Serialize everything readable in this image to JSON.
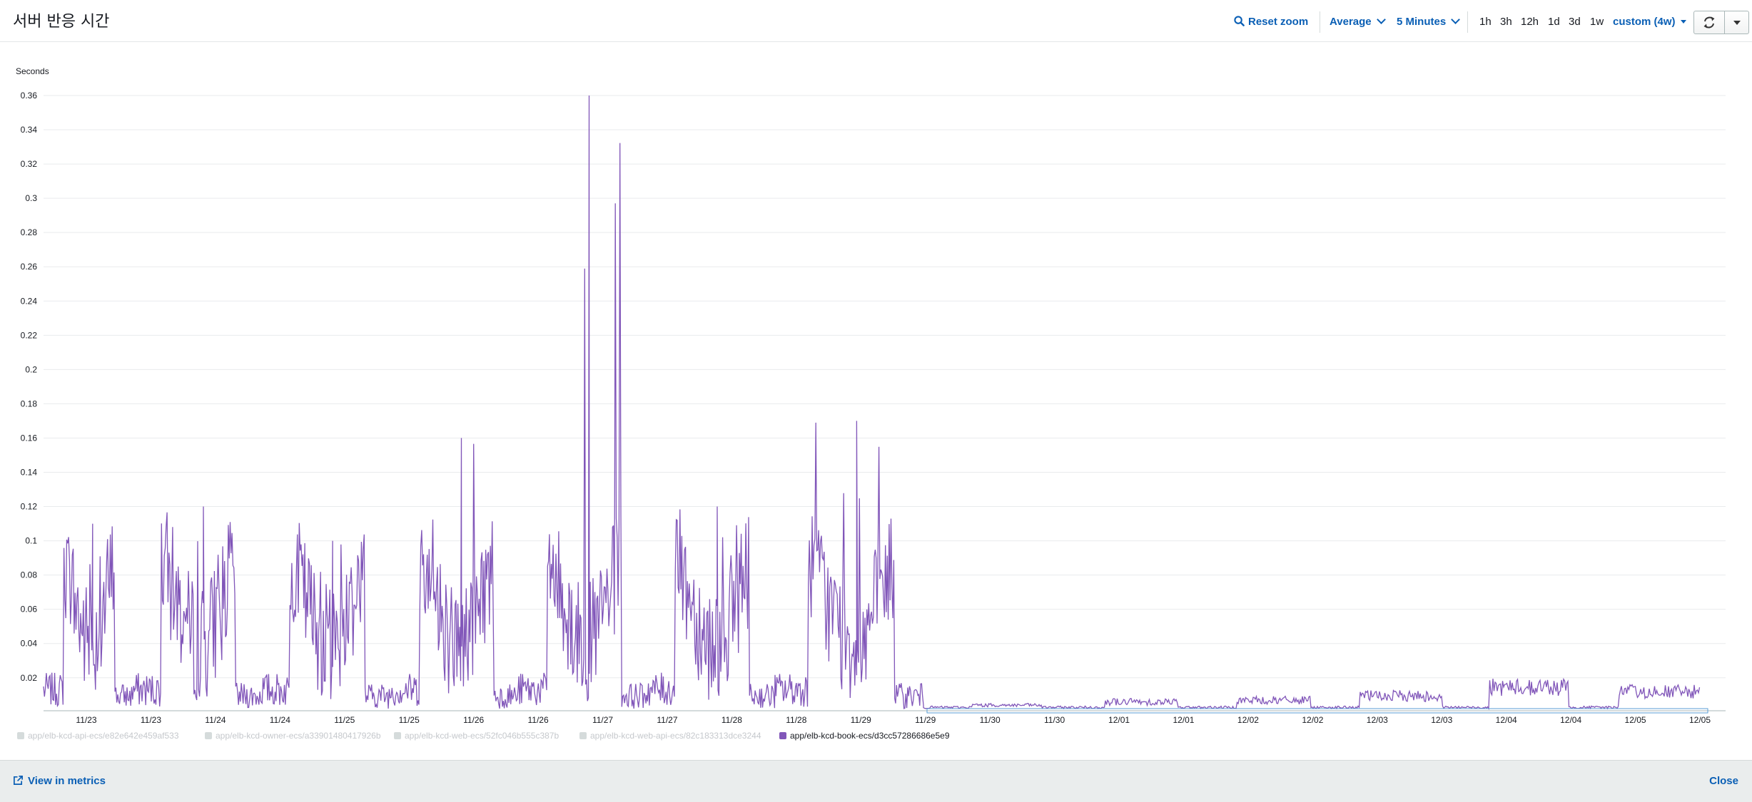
{
  "header": {
    "title": "서버 반응 시간",
    "reset_zoom": "Reset zoom",
    "statistic": "Average",
    "period": "5 Minutes",
    "time_ranges": [
      "1h",
      "3h",
      "12h",
      "1d",
      "3d",
      "1w"
    ],
    "custom_range": "custom (4w)"
  },
  "footer": {
    "view_in_metrics": "View in metrics",
    "close": "Close"
  },
  "colors": {
    "accent_link": "#0a5fb5",
    "series": "#8156b9",
    "grid": "#e9ebed"
  },
  "chart_data": {
    "type": "line",
    "ylabel": "Seconds",
    "ylim": [
      0,
      0.36
    ],
    "y_ticks": [
      "0.36",
      "0.34",
      "0.32",
      "0.3",
      "0.28",
      "0.26",
      "0.24",
      "0.22",
      "0.2",
      "0.18",
      "0.16",
      "0.14",
      "0.12",
      "0.1",
      "0.08",
      "0.06",
      "0.04",
      "0.02"
    ],
    "x_ticks": [
      "11/23",
      "11/23",
      "11/24",
      "11/24",
      "11/25",
      "11/25",
      "11/26",
      "11/26",
      "11/27",
      "11/27",
      "11/28",
      "11/28",
      "11/29",
      "11/29",
      "11/30",
      "11/30",
      "12/01",
      "12/01",
      "12/02",
      "12/02",
      "12/03",
      "12/03",
      "12/04",
      "12/04",
      "12/05",
      "12/05"
    ],
    "grid": true,
    "legend_position": "bottom-left",
    "legend": [
      {
        "label": "app/elb-kcd-api-ecs/e82e642e459af533",
        "active": false
      },
      {
        "label": "app/elb-kcd-owner-ecs/a33901480417926b",
        "active": false
      },
      {
        "label": "app/elb-kcd-web-ecs/52fc046b555c387b",
        "active": false
      },
      {
        "label": "app/elb-kcd-web-api-ecs/82c183313dce3244",
        "active": false
      },
      {
        "label": "app/elb-kcd-book-ecs/d3cc57286686e5e9",
        "active": true
      }
    ],
    "series": [
      {
        "name": "app/elb-kcd-book-ecs/d3cc57286686e5e9",
        "x": [
          "11/23",
          "11/23",
          "11/24",
          "11/24",
          "11/25",
          "11/25",
          "11/26",
          "11/26",
          "11/27",
          "11/27",
          "11/28",
          "11/28",
          "11/29",
          "11/29",
          "11/30",
          "11/30",
          "12/01",
          "12/01",
          "12/02",
          "12/02",
          "12/03",
          "12/03",
          "12/04",
          "12/04",
          "12/05",
          "12/05"
        ],
        "values": [
          0.11,
          0.01,
          0.12,
          0.01,
          0.1,
          0.01,
          0.16,
          0.01,
          0.36,
          0.01,
          0.12,
          0.01,
          0.17,
          0.002,
          0.004,
          0.002,
          0.007,
          0.002,
          0.008,
          0.002,
          0.011,
          0.002,
          0.017,
          0.003,
          0.014,
          0.003
        ]
      }
    ]
  }
}
